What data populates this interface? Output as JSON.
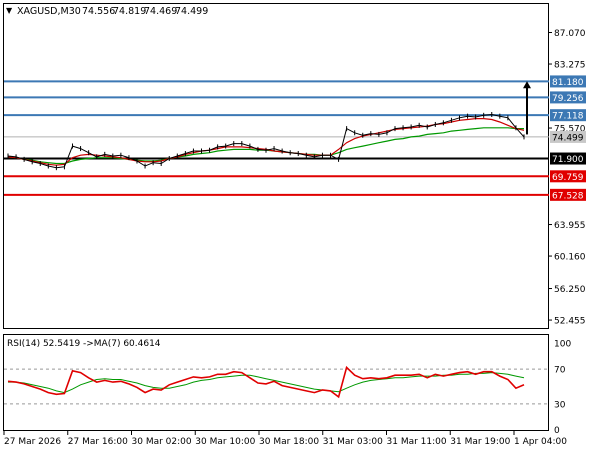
{
  "header": {
    "symbol": "XAGUSD,M30",
    "open": "74.556",
    "high": "74.819",
    "low": "74.469",
    "close": "74.499"
  },
  "colors": {
    "price": "#000000",
    "ma_fast": "#cc0000",
    "ma_slow": "#009900",
    "resistance": "#3c78b4",
    "support": "#e00000",
    "pivot": "#000000",
    "rsi": "#e00000",
    "rsi_ma": "#009900",
    "last_price_box": "#c8c8c8"
  },
  "chart_data": [
    {
      "type": "line",
      "panel": "price",
      "ylim": [
        51.5,
        90.5
      ],
      "y_ticks": [
        "87.070",
        "83.275",
        "75.570",
        "63.955",
        "60.160",
        "56.250",
        "52.455"
      ],
      "x_ticks": [
        "27 Mar 2026",
        "27 Mar 16:00",
        "30 Mar 02:00",
        "30 Mar 10:00",
        "30 Mar 18:00",
        "31 Mar 03:00",
        "31 Mar 11:00",
        "31 Mar 19:00",
        "1 Apr 04:00"
      ],
      "series": [
        {
          "key": "price",
          "values": [
            72.2,
            72.1,
            71.8,
            71.5,
            71.3,
            71.0,
            70.8,
            70.9,
            73.4,
            73.1,
            72.6,
            72.1,
            72.4,
            72.2,
            72.3,
            72.0,
            71.6,
            71.0,
            71.4,
            71.3,
            71.9,
            72.2,
            72.5,
            72.8,
            72.8,
            72.9,
            73.3,
            73.4,
            73.7,
            73.7,
            73.4,
            73.0,
            72.9,
            73.1,
            72.8,
            72.6,
            72.5,
            72.3,
            72.1,
            72.3,
            72.3,
            71.8,
            75.5,
            75.0,
            74.7,
            74.9,
            74.8,
            75.0,
            75.5,
            75.6,
            75.7,
            75.9,
            75.7,
            76.0,
            76.2,
            76.5,
            76.8,
            77.0,
            76.9,
            77.1,
            77.2,
            77.0,
            76.8,
            75.6,
            74.5
          ]
        },
        {
          "key": "ma_fast",
          "values": [
            72.1,
            72.0,
            71.8,
            71.6,
            71.4,
            71.2,
            71.1,
            71.2,
            72.0,
            72.3,
            72.4,
            72.3,
            72.2,
            72.1,
            72.0,
            71.8,
            71.6,
            71.5,
            71.5,
            71.6,
            71.9,
            72.1,
            72.4,
            72.6,
            72.8,
            72.9,
            73.1,
            73.3,
            73.3,
            73.3,
            73.2,
            73.1,
            73.0,
            72.8,
            72.7,
            72.6,
            72.5,
            72.4,
            72.3,
            72.3,
            72.3,
            73.0,
            73.8,
            74.3,
            74.6,
            74.8,
            75.0,
            75.2,
            75.4,
            75.5,
            75.6,
            75.7,
            75.8,
            76.0,
            76.1,
            76.3,
            76.5,
            76.6,
            76.7,
            76.7,
            76.6,
            76.3,
            75.9,
            75.5,
            75.3
          ]
        },
        {
          "key": "ma_slow",
          "values": [
            72.1,
            72.0,
            71.8,
            71.7,
            71.5,
            71.4,
            71.3,
            71.3,
            71.6,
            71.8,
            71.9,
            72.0,
            72.0,
            72.0,
            71.9,
            71.8,
            71.7,
            71.6,
            71.6,
            71.7,
            71.9,
            72.1,
            72.2,
            72.4,
            72.5,
            72.6,
            72.8,
            72.9,
            73.0,
            73.0,
            73.0,
            72.9,
            72.9,
            72.8,
            72.7,
            72.6,
            72.5,
            72.4,
            72.4,
            72.3,
            72.3,
            72.6,
            73.0,
            73.2,
            73.4,
            73.6,
            73.8,
            74.0,
            74.2,
            74.3,
            74.5,
            74.6,
            74.8,
            74.9,
            75.0,
            75.2,
            75.3,
            75.4,
            75.5,
            75.6,
            75.6,
            75.6,
            75.6,
            75.5,
            75.5
          ]
        }
      ],
      "levels": [
        {
          "value": "81.180",
          "kind": "resistance"
        },
        {
          "value": "79.256",
          "kind": "resistance"
        },
        {
          "value": "77.118",
          "kind": "resistance"
        },
        {
          "value": "71.900",
          "kind": "pivot"
        },
        {
          "value": "69.759",
          "kind": "support"
        },
        {
          "value": "67.528",
          "kind": "support"
        }
      ],
      "last_price": "74.499",
      "arrow": {
        "from": 74.8,
        "to": 81.2
      }
    },
    {
      "type": "line",
      "panel": "indicator",
      "title": "RSI(14) 52.5419",
      "ma_label": "->MA(7) 60.4614",
      "ylim": [
        0,
        100
      ],
      "y_ticks": [
        "100",
        "70",
        "30",
        "0"
      ],
      "levels": [
        70,
        30
      ],
      "series": [
        {
          "key": "rsi",
          "values": [
            56,
            55,
            53,
            50,
            47,
            43,
            41,
            42,
            68,
            66,
            60,
            55,
            57,
            55,
            56,
            53,
            49,
            43,
            47,
            46,
            52,
            55,
            58,
            61,
            60,
            61,
            64,
            64,
            67,
            66,
            60,
            54,
            53,
            56,
            51,
            49,
            47,
            45,
            43,
            46,
            45,
            38,
            72,
            63,
            59,
            60,
            59,
            60,
            63,
            63,
            63,
            64,
            60,
            64,
            62,
            64,
            66,
            67,
            64,
            67,
            67,
            62,
            58,
            48,
            52
          ]
        },
        {
          "key": "rsi_ma",
          "values": [
            55,
            55,
            54,
            52,
            50,
            48,
            45,
            43,
            47,
            52,
            55,
            58,
            59,
            58,
            58,
            56,
            54,
            51,
            49,
            48,
            48,
            50,
            52,
            55,
            57,
            58,
            60,
            61,
            62,
            63,
            63,
            61,
            59,
            57,
            55,
            53,
            51,
            49,
            47,
            46,
            45,
            44,
            48,
            52,
            55,
            57,
            58,
            59,
            60,
            60,
            61,
            62,
            62,
            62,
            63,
            63,
            64,
            64,
            65,
            65,
            66,
            65,
            64,
            62,
            60
          ]
        }
      ]
    }
  ]
}
